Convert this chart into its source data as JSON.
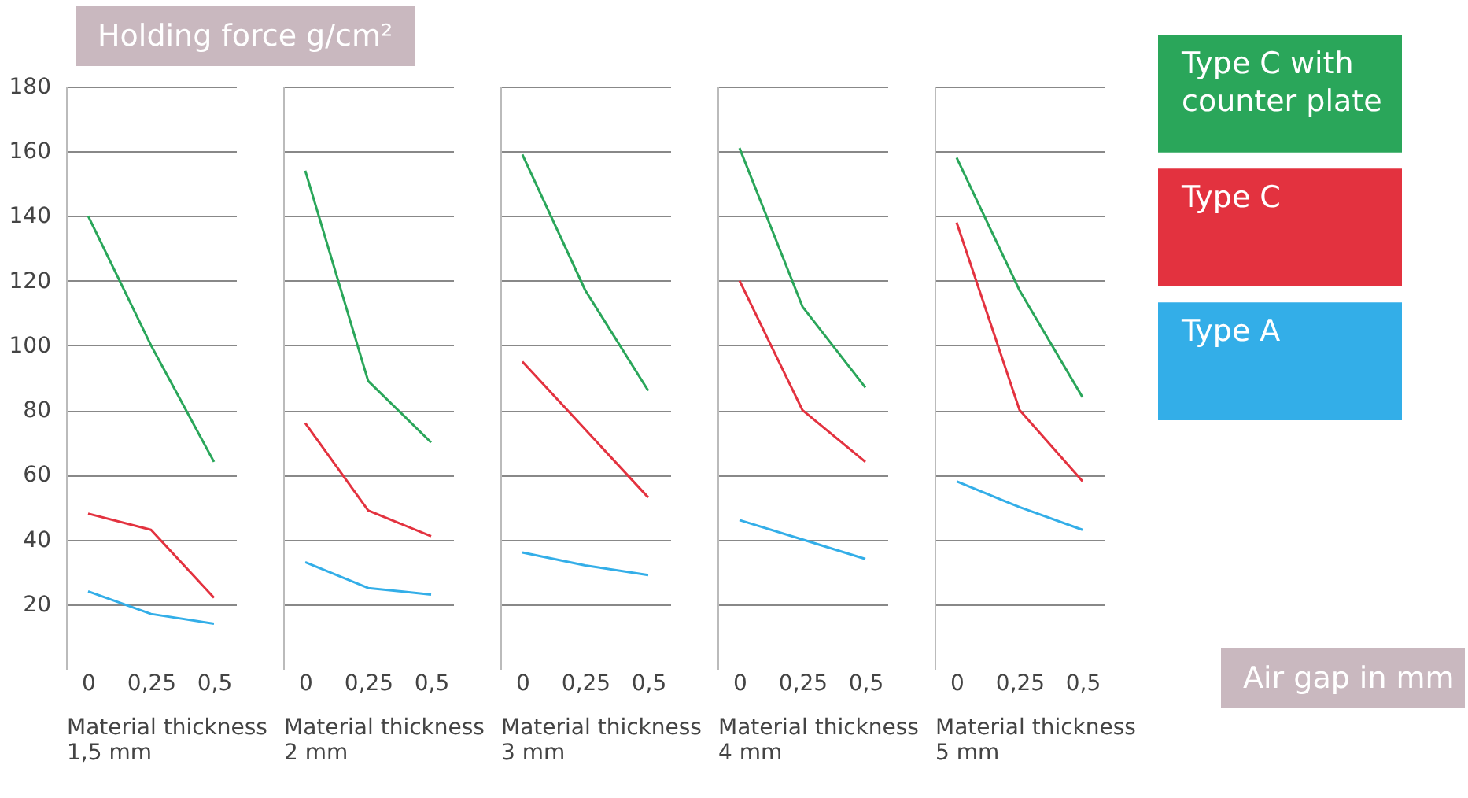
{
  "chart_data": [
    {
      "type": "line",
      "ylabel": "Holding force g/cm²",
      "xlabel": "Material thickness 1,5 mm",
      "categories": [
        "0",
        "0,25",
        "0,5"
      ],
      "ylim": [
        0,
        180
      ],
      "yticks": [
        20,
        40,
        60,
        80,
        100,
        120,
        140,
        160,
        180
      ],
      "grid": "y",
      "series": [
        {
          "color": "#2aa65a",
          "values": [
            140,
            100,
            64
          ]
        },
        {
          "color": "#e3323f",
          "values": [
            48,
            43,
            22
          ]
        },
        {
          "color": "#33aee8",
          "values": [
            24,
            17,
            14
          ]
        }
      ]
    },
    {
      "type": "line",
      "xlabel": "Material thickness 2 mm",
      "categories": [
        "0",
        "0,25",
        "0,5"
      ],
      "ylim": [
        0,
        180
      ],
      "yticks": [
        20,
        40,
        60,
        80,
        100,
        120,
        140,
        160,
        180
      ],
      "grid": "y",
      "tick_labels": "x",
      "series": [
        {
          "color": "#2aa65a",
          "values": [
            154,
            89,
            70
          ]
        },
        {
          "color": "#e3323f",
          "values": [
            76,
            49,
            41
          ]
        },
        {
          "color": "#33aee8",
          "values": [
            33,
            25,
            23
          ]
        }
      ]
    },
    {
      "type": "line",
      "xlabel": "Material thickness 3 mm",
      "categories": [
        "0",
        "0,25",
        "0,5"
      ],
      "ylim": [
        0,
        180
      ],
      "yticks": [
        20,
        40,
        60,
        80,
        100,
        120,
        140,
        160,
        180
      ],
      "grid": "y",
      "tick_labels": "x",
      "series": [
        {
          "color": "#2aa65a",
          "values": [
            159,
            117,
            86
          ]
        },
        {
          "color": "#e3323f",
          "values": [
            95,
            74,
            53
          ]
        },
        {
          "color": "#33aee8",
          "values": [
            36,
            32,
            29
          ]
        }
      ]
    },
    {
      "type": "line",
      "xlabel": "Material thickness 4 mm",
      "categories": [
        "0",
        "0,25",
        "0,5"
      ],
      "ylim": [
        0,
        180
      ],
      "yticks": [
        20,
        40,
        60,
        80,
        100,
        120,
        140,
        160,
        180
      ],
      "grid": "y",
      "tick_labels": "x",
      "series": [
        {
          "color": "#2aa65a",
          "values": [
            161,
            112,
            87
          ]
        },
        {
          "color": "#e3323f",
          "values": [
            120,
            80,
            64
          ]
        },
        {
          "color": "#33aee8",
          "values": [
            46,
            40,
            34
          ]
        }
      ]
    },
    {
      "type": "line",
      "xlabel": "Material thickness 5 mm",
      "categories": [
        "0",
        "0,25",
        "0,5"
      ],
      "ylim": [
        0,
        180
      ],
      "yticks": [
        20,
        40,
        60,
        80,
        100,
        120,
        140,
        160,
        180
      ],
      "grid": "y",
      "tick_labels": "x",
      "legend": "right",
      "annotations": [
        "Air gap in mm"
      ],
      "series": [
        {
          "name": "Type C with counter plate",
          "color": "#2aa65a",
          "values": [
            158,
            117,
            84
          ]
        },
        {
          "name": "Type C",
          "color": "#e3323f",
          "values": [
            138,
            80,
            58
          ]
        },
        {
          "name": "Type A",
          "color": "#33aee8",
          "values": [
            58,
            50,
            43
          ]
        }
      ]
    }
  ]
}
